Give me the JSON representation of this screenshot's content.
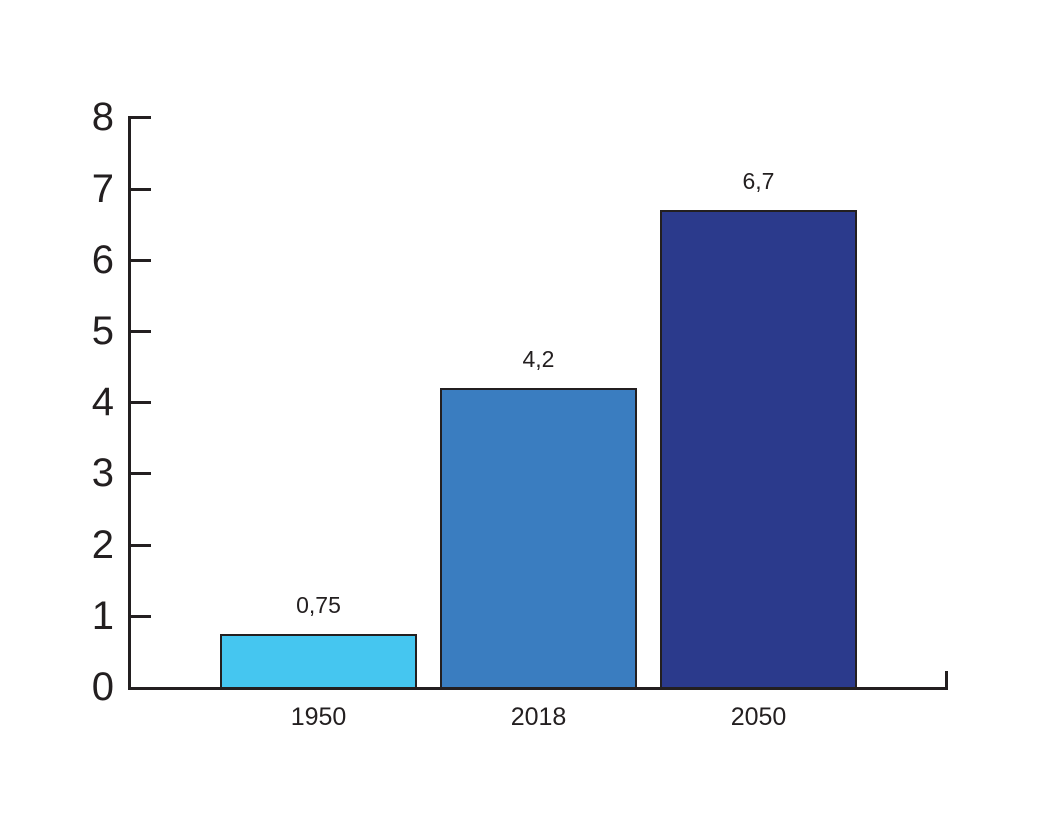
{
  "chart_data": {
    "type": "bar",
    "categories": [
      "1950",
      "2018",
      "2050"
    ],
    "values": [
      0.75,
      4.2,
      6.7
    ],
    "value_labels": [
      "0,75",
      "4,2",
      "6,7"
    ],
    "bar_colors": [
      "#45C6F0",
      "#3A7DC0",
      "#2B3A8C"
    ],
    "bar_outline_color": "#231F20",
    "axis_color": "#231F20",
    "background_color": "#FFFFFF",
    "ylim": [
      0,
      8
    ],
    "yticks": [
      0,
      1,
      2,
      3,
      4,
      5,
      6,
      7,
      8
    ],
    "grid": false,
    "legend": false,
    "decimal_separator": ","
  }
}
